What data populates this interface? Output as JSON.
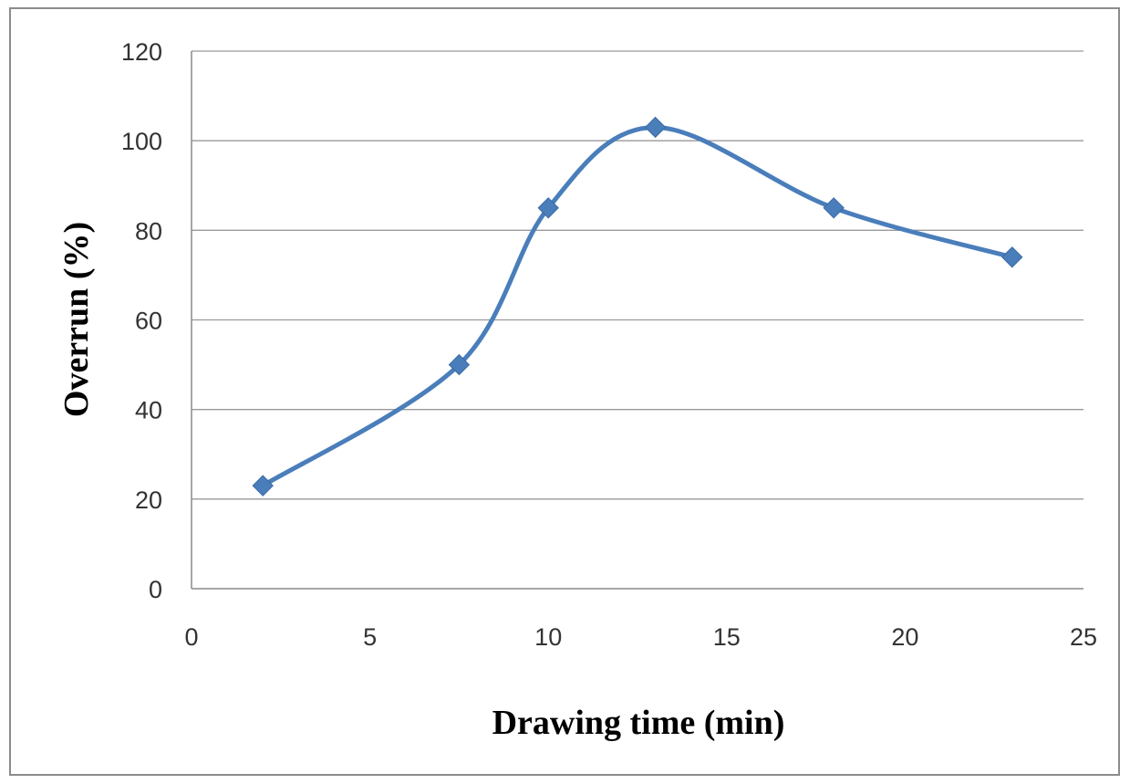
{
  "chart_data": {
    "type": "line",
    "title": "",
    "xlabel": "Drawing time (min)",
    "ylabel": "Overrun (%)",
    "xlim": [
      0,
      25
    ],
    "ylim": [
      0,
      120
    ],
    "xticks": [
      0,
      5,
      10,
      15,
      20,
      25
    ],
    "yticks": [
      0,
      20,
      40,
      60,
      80,
      100,
      120
    ],
    "grid": "horizontal",
    "legend": "none",
    "smooth": true,
    "marker": "diamond",
    "series": [
      {
        "color": "#4a7ebb",
        "x": [
          2,
          7.5,
          10,
          13,
          18,
          23
        ],
        "y": [
          23,
          50,
          85,
          103,
          85,
          74
        ]
      }
    ]
  }
}
